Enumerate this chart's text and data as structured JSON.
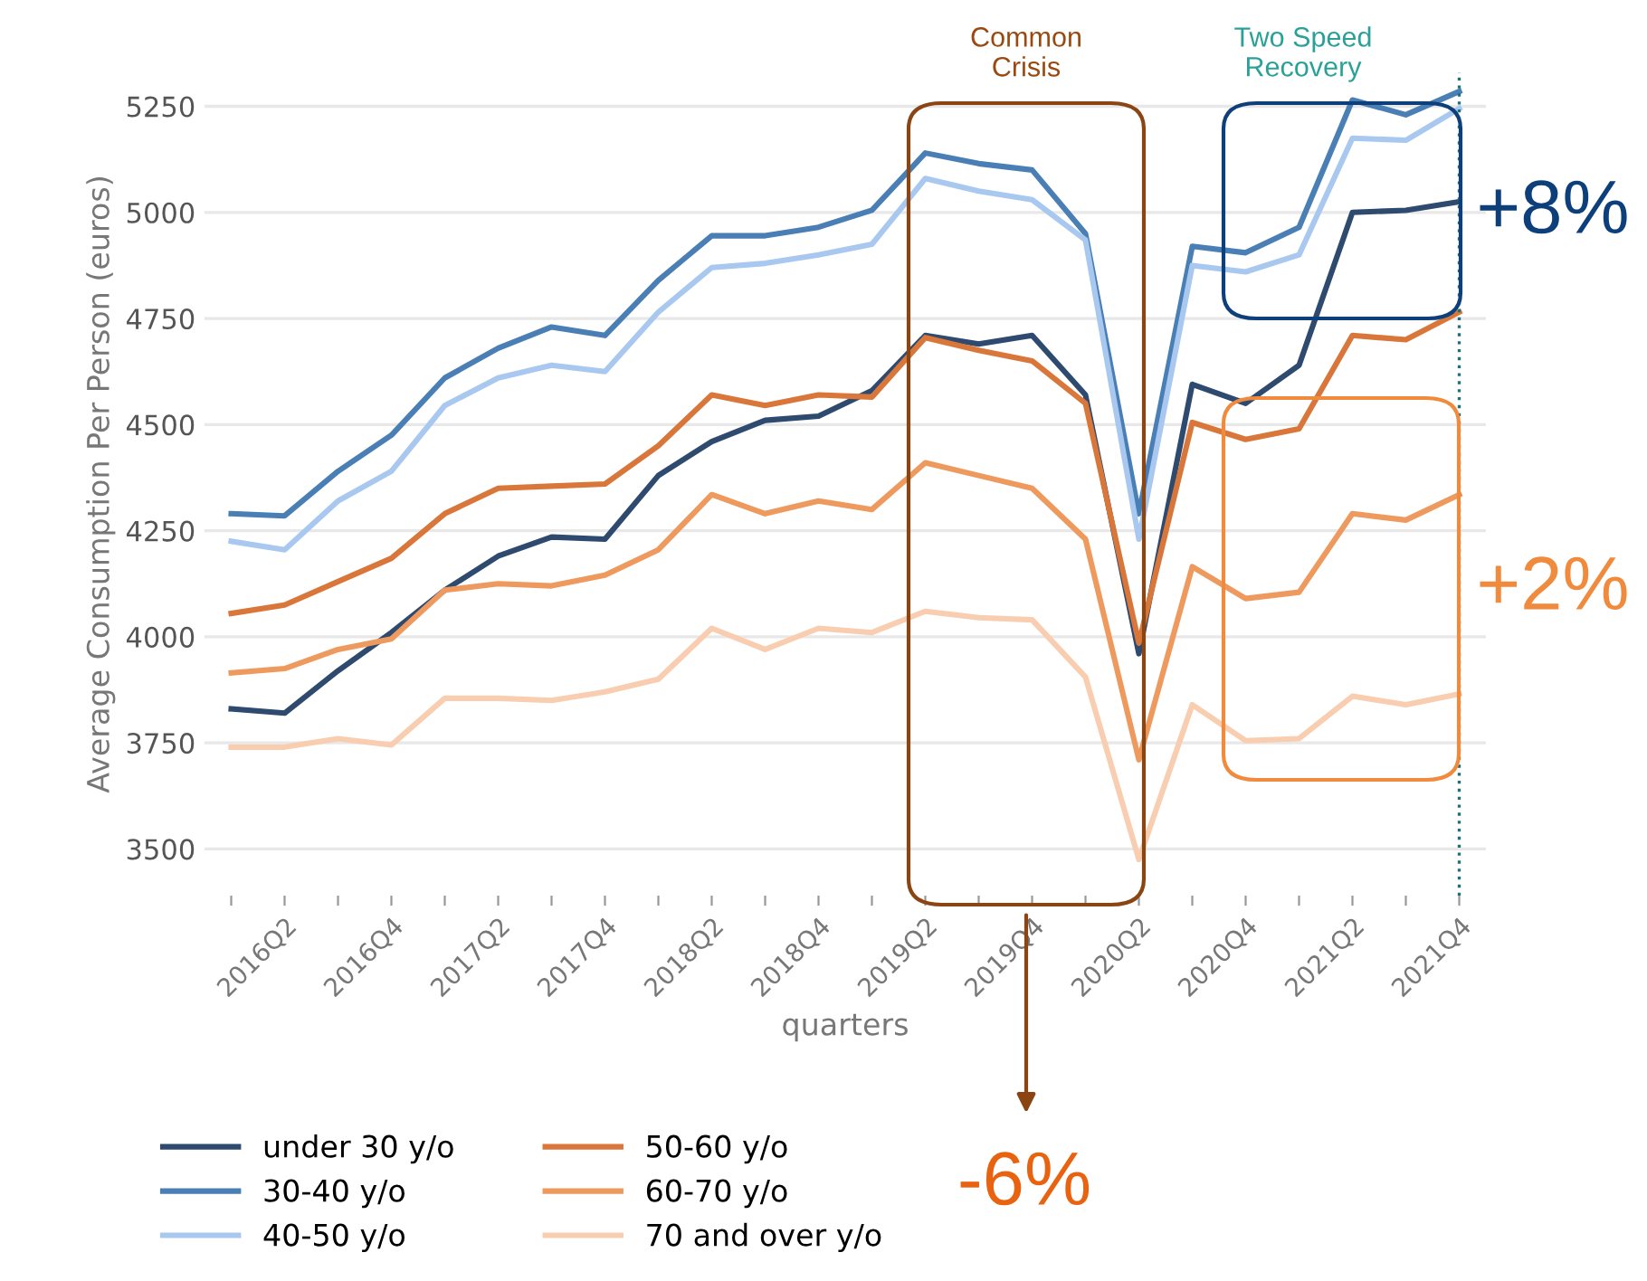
{
  "chart_data": {
    "type": "line",
    "xlabel": "quarters",
    "ylabel": "Average Consumption Per Person (euros)",
    "categories": [
      null,
      "2016Q2",
      null,
      "2016Q4",
      null,
      "2017Q2",
      null,
      "2017Q4",
      null,
      "2018Q2",
      null,
      "2018Q4",
      null,
      "2019Q2",
      null,
      "2019Q4",
      null,
      "2020Q2",
      null,
      "2020Q4",
      null,
      "2021Q2",
      null,
      "2021Q4"
    ],
    "ylim": [
      3390,
      5330
    ],
    "yticks": [
      3500,
      3750,
      4000,
      4250,
      4500,
      4750,
      5000,
      5250
    ],
    "grid": "y",
    "legend": "bottom",
    "line_style": "solid",
    "marker": "none",
    "series": [
      {
        "name": "under 30 y/o",
        "color": "#2e4a6e",
        "values": [
          3830,
          3820,
          3920,
          4010,
          4110,
          4190,
          4235,
          4230,
          4380,
          4460,
          4510,
          4520,
          4580,
          4710,
          4690,
          4710,
          4570,
          3960,
          4595,
          4550,
          4640,
          5000,
          5005,
          5025
        ]
      },
      {
        "name": "30-40 y/o",
        "color": "#4a7fb5",
        "values": [
          4290,
          4285,
          4390,
          4475,
          4610,
          4680,
          4730,
          4710,
          4840,
          4945,
          4945,
          4965,
          5005,
          5140,
          5115,
          5100,
          4950,
          4290,
          4920,
          4905,
          4965,
          5265,
          5230,
          5285
        ]
      },
      {
        "name": "40-50 y/o",
        "color": "#a9c8f0",
        "values": [
          4225,
          4205,
          4320,
          4390,
          4545,
          4610,
          4640,
          4625,
          4765,
          4870,
          4880,
          4900,
          4925,
          5080,
          5050,
          5030,
          4935,
          4230,
          4875,
          4860,
          4900,
          5175,
          5170,
          5245
        ]
      },
      {
        "name": "50-60 y/o",
        "color": "#d9773b",
        "values": [
          4055,
          4075,
          4130,
          4185,
          4290,
          4350,
          4355,
          4360,
          4450,
          4570,
          4545,
          4570,
          4565,
          4705,
          4675,
          4650,
          4550,
          3985,
          4505,
          4465,
          4490,
          4710,
          4700,
          4765
        ]
      },
      {
        "name": "60-70 y/o",
        "color": "#ee9a5e",
        "values": [
          3915,
          3925,
          3970,
          3995,
          4110,
          4125,
          4120,
          4145,
          4205,
          4335,
          4290,
          4320,
          4300,
          4410,
          4380,
          4350,
          4230,
          3710,
          4165,
          4090,
          4105,
          4290,
          4275,
          4335
        ]
      },
      {
        "name": "70 and over y/o",
        "color": "#f8cdb0",
        "values": [
          3740,
          3740,
          3760,
          3745,
          3855,
          3855,
          3850,
          3870,
          3900,
          4020,
          3970,
          4020,
          4010,
          4060,
          4045,
          4040,
          3905,
          3475,
          3840,
          3755,
          3760,
          3860,
          3840,
          3865
        ]
      }
    ],
    "ref_lines": [
      {
        "axis": "x",
        "value": "2021Q4",
        "color": "#1f6f7a",
        "line_style": "dotted"
      }
    ],
    "annotations": [
      "Common\nCrisis",
      "Two Speed\nRecovery",
      "+8%",
      "+2%",
      "-6%"
    ]
  }
}
